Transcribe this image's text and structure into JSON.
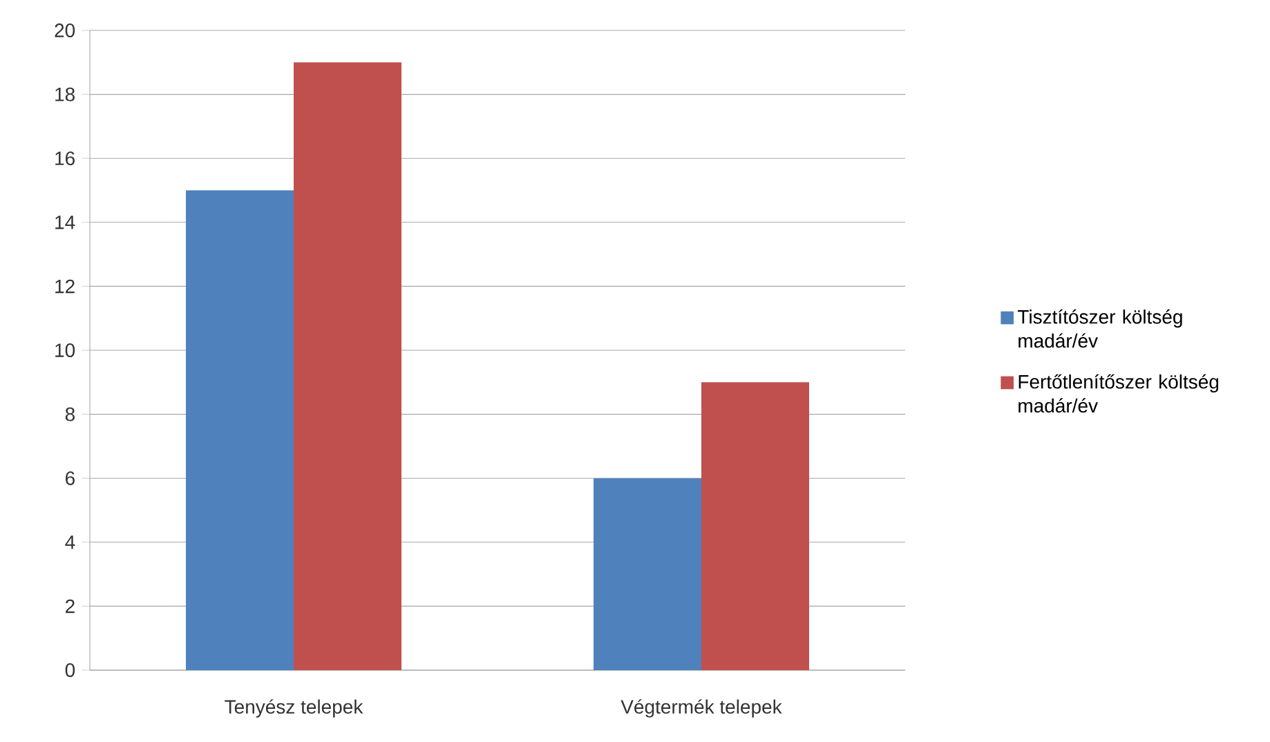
{
  "chart_data": {
    "type": "bar",
    "categories": [
      "Tenyész telepek",
      "Végtermék telepek"
    ],
    "series": [
      {
        "name": "Tisztítószer  költség madár/év",
        "color": "#4f81bd",
        "values": [
          15,
          6
        ]
      },
      {
        "name": "Fertőtlenítőszer költség madár/év",
        "color": "#c0504d",
        "values": [
          19,
          9
        ]
      }
    ],
    "ylim": [
      0,
      20
    ],
    "yticks": [
      0,
      2,
      4,
      6,
      8,
      10,
      12,
      14,
      16,
      18,
      20
    ],
    "grid": "y",
    "legend": "right"
  }
}
